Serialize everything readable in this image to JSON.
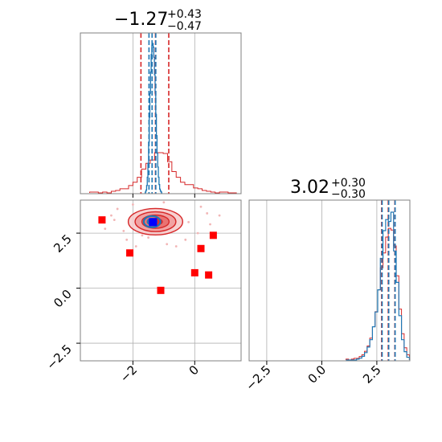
{
  "chart_data": [
    {
      "type": "histogram",
      "panel": "top-left",
      "title": {
        "value": "−1.27",
        "sup": "+0.43",
        "sub": "−0.47"
      },
      "xlim": [
        -3.7,
        1.5
      ],
      "grid": true,
      "xticks": [
        -2,
        0
      ],
      "bin_edges": [
        -3.4,
        -3.26,
        -3.12,
        -2.98,
        -2.84,
        -2.7,
        -2.56,
        -2.42,
        -2.28,
        -2.14,
        -2.0,
        -1.86,
        -1.72,
        -1.58,
        -1.44,
        -1.3,
        -1.16,
        -1.02,
        -0.88,
        -0.74,
        -0.6,
        -0.46,
        -0.32,
        -0.18,
        -0.04,
        0.1,
        0.24,
        0.38,
        0.52,
        0.66,
        0.8,
        0.94,
        1.08,
        1.22,
        1.36
      ],
      "series": [
        {
          "color": "#d62728",
          "counts": [
            1,
            1,
            0,
            1,
            0,
            2,
            3,
            5,
            5,
            9,
            13,
            19,
            29,
            36,
            40,
            49,
            49,
            48,
            38,
            26,
            19,
            13,
            10,
            10,
            6,
            5,
            3,
            2,
            1,
            0,
            1,
            1,
            0,
            0
          ],
          "quantile_lines": [
            -1.74,
            -1.27,
            -0.84
          ]
        },
        {
          "color": "#1f77b4",
          "x_range": [
            -1.62,
            -1.05
          ],
          "profile": [
            0,
            1,
            3,
            8,
            17,
            32,
            55,
            82,
            108,
            131,
            150,
            160,
            162,
            158,
            147,
            128,
            108,
            85,
            62,
            43,
            28,
            17,
            9,
            4,
            2,
            1,
            0
          ],
          "quantile_lines": [
            -1.48,
            -1.38,
            -1.26
          ]
        }
      ]
    },
    {
      "type": "contour",
      "panel": "bottom-left",
      "xlim": [
        -3.7,
        1.5
      ],
      "ylim": [
        -3.3,
        4.0
      ],
      "grid": true,
      "xticks": [
        -2,
        0
      ],
      "yticks": [
        2.5,
        0.0,
        -2.5
      ],
      "red_posterior": {
        "center": [
          -1.27,
          3.02
        ],
        "sigma_x": 0.44,
        "sigma_y": 0.3,
        "levels": [
          0.5,
          1.0,
          1.5,
          2.0
        ],
        "color": "#d62728",
        "scatter": [
          [
            -2.9,
            2.7
          ],
          [
            -2.5,
            3.6
          ],
          [
            -2.2,
            2.2
          ],
          [
            -2.0,
            3.8
          ],
          [
            -1.9,
            1.9
          ],
          [
            -1.7,
            2.4
          ],
          [
            -0.6,
            1.9
          ],
          [
            -0.3,
            2.2
          ],
          [
            0.2,
            3.7
          ],
          [
            0.5,
            2.9
          ],
          [
            0.8,
            3.3
          ],
          [
            -0.9,
            2.0
          ],
          [
            -1.0,
            3.9
          ],
          [
            -2.6,
            3.1
          ],
          [
            0.1,
            2.5
          ],
          [
            -0.2,
            3.0
          ],
          [
            -1.5,
            2.3
          ],
          [
            0.4,
            3.4
          ],
          [
            -2.3,
            2.6
          ],
          [
            -2.7,
            3.3
          ]
        ]
      },
      "blue_posterior": {
        "center": [
          -1.38,
          3.02
        ],
        "sigma_x": 0.18,
        "sigma_y": 0.17,
        "levels": [
          0.8,
          1.5
        ],
        "color": "#1f77b4"
      },
      "red_markers": [
        [
          -3.0,
          3.1
        ],
        [
          -2.1,
          1.6
        ],
        [
          -1.1,
          -0.1
        ],
        [
          0.0,
          0.7
        ],
        [
          0.2,
          1.8
        ],
        [
          0.45,
          0.6
        ],
        [
          0.6,
          2.4
        ]
      ],
      "blue_marker": [
        -1.35,
        3.0
      ]
    },
    {
      "type": "histogram",
      "panel": "bottom-right",
      "title": {
        "value": "3.02",
        "sup": "+0.30",
        "sub": "−0.30"
      },
      "xlim": [
        -3.3,
        4.0
      ],
      "grid": true,
      "xticks": [
        -2.5,
        0.0,
        2.5
      ],
      "bin_edges": [
        1.1,
        1.22,
        1.34,
        1.46,
        1.58,
        1.7,
        1.82,
        1.94,
        2.06,
        2.18,
        2.3,
        2.42,
        2.54,
        2.66,
        2.78,
        2.9,
        3.02,
        3.14,
        3.26,
        3.38,
        3.5,
        3.62,
        3.74,
        3.86,
        3.98
      ],
      "series": [
        {
          "color": "#d62728",
          "counts": [
            1,
            0,
            1,
            2,
            2,
            4,
            6,
            10,
            16,
            25,
            38,
            55,
            80,
            105,
            122,
            140,
            150,
            148,
            130,
            96,
            58,
            30,
            14,
            6
          ],
          "quantile_lines": [
            2.72,
            3.02,
            3.32
          ]
        },
        {
          "color": "#1f77b4",
          "counts": [
            0,
            0,
            0,
            0,
            1,
            2,
            4,
            8,
            14,
            22,
            36,
            52,
            76,
            110,
            140,
            152,
            150,
            160,
            118,
            84,
            48,
            22,
            9,
            3
          ],
          "quantile_lines": [
            2.74,
            3.04,
            3.33
          ]
        }
      ]
    }
  ]
}
